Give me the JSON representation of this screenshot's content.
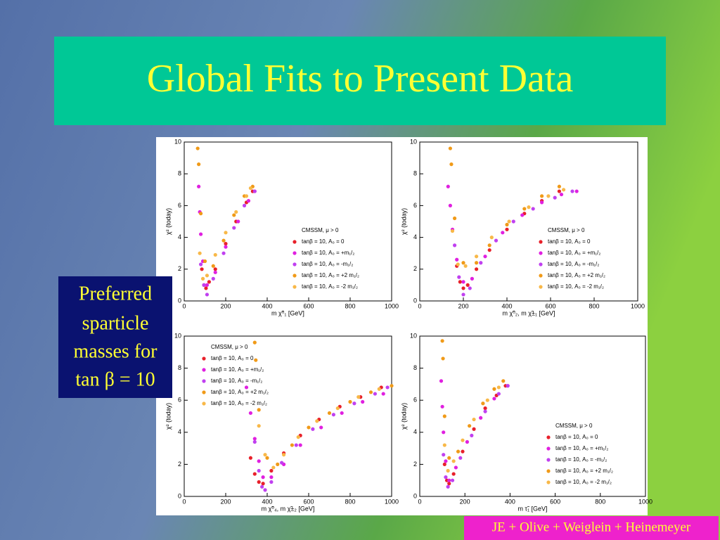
{
  "slide": {
    "title": "Global Fits to Present Data",
    "note": [
      "Preferred",
      "sparticle",
      "masses for",
      "tan β = 10"
    ],
    "credit": "JE + Olive + Weiglein + Heinemeyer"
  },
  "chart_data": [
    {
      "type": "scatter",
      "xlabel": "m χ̃⁰₁ [GeV]",
      "ylabel": "χ² (today)",
      "legend_title": "CMSSM, μ > 0",
      "legend": "lower right",
      "xlim": [
        0,
        1000
      ],
      "xticks": [
        0,
        200,
        400,
        600,
        800,
        1000
      ],
      "ylim": [
        0,
        10
      ],
      "yticks": [
        0,
        2,
        4,
        6,
        8,
        10
      ],
      "series": [
        {
          "name": "tanβ = 10, A₀ = 0",
          "color": "#e8202a",
          "x": [
            85,
            95,
            105,
            120,
            150,
            200,
            250,
            300,
            330
          ],
          "values": [
            2.0,
            1.0,
            0.8,
            1.2,
            2.0,
            3.6,
            5.0,
            6.2,
            6.9
          ]
        },
        {
          "name": "tanβ = 10, A₀ = +m₁/₂",
          "color": "#e020e0",
          "x": [
            70,
            75,
            80,
            90,
            110,
            150,
            200,
            260,
            310,
            340
          ],
          "values": [
            7.2,
            5.6,
            4.2,
            2.5,
            1.0,
            1.8,
            3.4,
            5.0,
            6.3,
            6.9
          ]
        },
        {
          "name": "tanβ = 10, A₀ = -m₁/₂",
          "color": "#c040f0",
          "x": [
            80,
            95,
            110,
            140,
            190,
            240,
            290,
            340
          ],
          "values": [
            2.3,
            1.0,
            0.4,
            1.4,
            3.0,
            4.6,
            6.0,
            6.9
          ]
        },
        {
          "name": "tanβ = 10, A₀ = +2 m₁/₂",
          "color": "#f09a18",
          "x": [
            65,
            70,
            80,
            100,
            140,
            190,
            240,
            290,
            330
          ],
          "values": [
            9.6,
            8.6,
            5.5,
            2.5,
            2.2,
            3.8,
            5.4,
            6.6,
            7.2
          ]
        },
        {
          "name": "tanβ = 10, A₀ = -2 m₁/₂",
          "color": "#f8b848",
          "x": [
            75,
            90,
            110,
            150,
            200,
            250,
            300,
            320
          ],
          "values": [
            3.0,
            1.4,
            1.6,
            2.9,
            4.3,
            5.6,
            6.6,
            7.1
          ]
        }
      ]
    },
    {
      "type": "scatter",
      "xlabel": "m χ̃⁰₂, m χ̃±₁ [GeV]",
      "ylabel": "χ² (today)",
      "legend_title": "CMSSM, μ > 0",
      "legend": "lower right",
      "xlim": [
        0,
        1000
      ],
      "xticks": [
        0,
        200,
        400,
        600,
        800,
        1000
      ],
      "ylim": [
        0,
        10
      ],
      "yticks": [
        0,
        2,
        4,
        6,
        8,
        10
      ],
      "series": [
        {
          "name": "tanβ = 10, A₀ = 0",
          "color": "#e8202a",
          "x": [
            170,
            185,
            200,
            220,
            260,
            320,
            400,
            480,
            560,
            640
          ],
          "values": [
            2.2,
            1.2,
            0.8,
            1.0,
            2.0,
            3.2,
            4.5,
            5.5,
            6.3,
            6.9
          ]
        },
        {
          "name": "tanβ = 10, A₀ = +m₁/₂",
          "color": "#e020e0",
          "x": [
            130,
            140,
            150,
            170,
            200,
            240,
            300,
            380,
            470,
            560,
            650,
            720
          ],
          "values": [
            7.2,
            6.0,
            4.5,
            2.6,
            1.2,
            1.4,
            2.8,
            4.3,
            5.4,
            6.2,
            6.7,
            6.9
          ]
        },
        {
          "name": "tanβ = 10, A₀ = -m₁/₂",
          "color": "#c040f0",
          "x": [
            160,
            180,
            200,
            230,
            280,
            350,
            430,
            520,
            620,
            700
          ],
          "values": [
            3.5,
            1.5,
            0.4,
            0.8,
            2.4,
            3.8,
            5.0,
            5.8,
            6.5,
            6.9
          ]
        },
        {
          "name": "tanβ = 10, A₀ = +2 m₁/₂",
          "color": "#f09a18",
          "x": [
            140,
            145,
            160,
            200,
            260,
            320,
            400,
            480,
            560,
            640
          ],
          "values": [
            9.6,
            8.6,
            5.2,
            2.4,
            2.4,
            3.5,
            4.8,
            5.8,
            6.6,
            7.2
          ]
        },
        {
          "name": "tanβ = 10, A₀ = -2 m₁/₂",
          "color": "#f8b848",
          "x": [
            150,
            175,
            210,
            260,
            330,
            410,
            500,
            590,
            660
          ],
          "values": [
            4.4,
            2.3,
            2.2,
            2.8,
            4.0,
            5.0,
            5.9,
            6.6,
            7.0
          ]
        }
      ]
    },
    {
      "type": "scatter",
      "xlabel": "m χ̃⁰₄, m χ̃±₂ [GeV]",
      "ylabel": "χ² (today)",
      "legend_title": "CMSSM, μ > 0",
      "legend": "upper left",
      "xlim": [
        0,
        1000
      ],
      "xticks": [
        0,
        200,
        400,
        600,
        800,
        1000
      ],
      "ylim": [
        0,
        10
      ],
      "yticks": [
        0,
        2,
        4,
        6,
        8,
        10
      ],
      "series": [
        {
          "name": "tanβ = 10, A₀ = 0",
          "color": "#e8202a",
          "x": [
            320,
            340,
            360,
            380,
            420,
            480,
            560,
            650,
            750,
            850,
            950
          ],
          "values": [
            2.4,
            1.4,
            0.9,
            0.8,
            1.6,
            2.7,
            3.8,
            4.8,
            5.6,
            6.2,
            6.8
          ]
        },
        {
          "name": "tanβ = 10, A₀ = +m₁/₂",
          "color": "#e020e0",
          "x": [
            300,
            320,
            340,
            360,
            380,
            420,
            480,
            560,
            660,
            760,
            860,
            960
          ],
          "values": [
            6.8,
            5.2,
            3.6,
            2.2,
            1.2,
            1.2,
            2.0,
            3.2,
            4.3,
            5.2,
            5.9,
            6.4
          ]
        },
        {
          "name": "tanβ = 10, A₀ = -m₁/₂",
          "color": "#c040f0",
          "x": [
            340,
            360,
            375,
            390,
            420,
            470,
            540,
            620,
            720,
            820,
            920,
            980
          ],
          "values": [
            3.4,
            1.6,
            0.6,
            0.4,
            0.9,
            2.1,
            3.2,
            4.2,
            5.1,
            5.8,
            6.4,
            6.8
          ]
        },
        {
          "name": "tanβ = 10, A₀ = +2 m₁/₂",
          "color": "#f09a18",
          "x": [
            340,
            345,
            360,
            400,
            450,
            520,
            600,
            700,
            800,
            900,
            1000
          ],
          "values": [
            9.6,
            8.5,
            5.4,
            2.4,
            2.0,
            3.2,
            4.3,
            5.2,
            5.9,
            6.5,
            6.9
          ]
        },
        {
          "name": "tanβ = 10, A₀ = -2 m₁/₂",
          "color": "#f8b848",
          "x": [
            360,
            390,
            430,
            480,
            550,
            640,
            740,
            840,
            940
          ],
          "values": [
            4.4,
            2.6,
            1.8,
            2.6,
            3.7,
            4.7,
            5.5,
            6.2,
            6.7
          ]
        }
      ]
    },
    {
      "type": "scatter",
      "xlabel": "m τ̃₁ [GeV]",
      "ylabel": "χ² (today)",
      "legend_title": "CMSSM, μ > 0",
      "legend": "lower right",
      "xlim": [
        0,
        1000
      ],
      "xticks": [
        0,
        200,
        400,
        600,
        800,
        1000
      ],
      "ylim": [
        0,
        10
      ],
      "yticks": [
        0,
        2,
        4,
        6,
        8,
        10
      ],
      "series": [
        {
          "name": "tanβ = 10, A₀ = 0",
          "color": "#e8202a",
          "x": [
            110,
            120,
            130,
            150,
            190,
            240,
            290,
            340,
            380
          ],
          "values": [
            2.0,
            1.0,
            0.8,
            1.4,
            2.8,
            4.2,
            5.5,
            6.3,
            6.9
          ]
        },
        {
          "name": "tanβ = 10, A₀ = +m₁/₂",
          "color": "#e020e0",
          "x": [
            95,
            100,
            105,
            115,
            130,
            160,
            210,
            270,
            330,
            390
          ],
          "values": [
            7.2,
            5.6,
            4.0,
            2.2,
            1.0,
            1.8,
            3.4,
            4.9,
            6.1,
            6.9
          ]
        },
        {
          "name": "tanβ = 10, A₀ = -m₁/₂",
          "color": "#c040f0",
          "x": [
            105,
            115,
            125,
            145,
            180,
            230,
            290,
            350,
            390
          ],
          "values": [
            2.6,
            1.2,
            0.6,
            1.0,
            2.4,
            3.8,
            5.3,
            6.4,
            6.9
          ]
        },
        {
          "name": "tanβ = 10, A₀ = +2 m₁/₂",
          "color": "#f09a18",
          "x": [
            100,
            103,
            110,
            130,
            170,
            220,
            280,
            330,
            370
          ],
          "values": [
            9.7,
            8.6,
            5.0,
            2.4,
            2.8,
            4.4,
            5.8,
            6.7,
            7.2
          ]
        },
        {
          "name": "tanβ = 10, A₀ = -2 m₁/₂",
          "color": "#f8b848",
          "x": [
            110,
            125,
            150,
            190,
            240,
            300,
            350
          ],
          "values": [
            3.2,
            1.6,
            2.2,
            3.5,
            4.8,
            6.0,
            6.8
          ]
        }
      ]
    }
  ]
}
